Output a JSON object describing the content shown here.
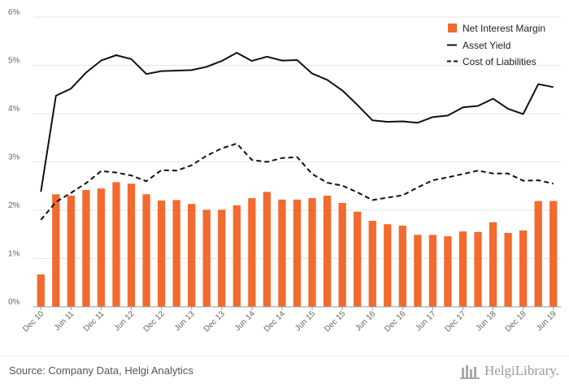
{
  "colors": {
    "bar": "#f26a2e",
    "line": "#111111",
    "grid": "#e5e5e5",
    "axis": "#999999"
  },
  "source": "Source: Company Data, Helgi Analytics",
  "logo": {
    "text": "HelgiLibrary.",
    "icon": "library-logo-icon"
  },
  "chart_data": {
    "type": "bar",
    "title": "",
    "xlabel": "",
    "ylabel": "",
    "ylim": [
      0,
      6
    ],
    "y_ticks": [
      "0%",
      "1%",
      "2%",
      "3%",
      "4%",
      "5%",
      "6%"
    ],
    "y_tick_values": [
      0,
      1,
      2,
      3,
      4,
      5,
      6
    ],
    "grid": true,
    "legend_position": "top-right",
    "categories": [
      "Dec 10",
      "Mar 11",
      "Jun 11",
      "Sep 11",
      "Dec 11",
      "Mar 12",
      "Jun 12",
      "Sep 12",
      "Dec 12",
      "Mar 13",
      "Jun 13",
      "Sep 13",
      "Dec 13",
      "Mar 14",
      "Jun 14",
      "Sep 14",
      "Dec 14",
      "Mar 15",
      "Jun 15",
      "Sep 15",
      "Dec 15",
      "Mar 16",
      "Jun 16",
      "Sep 16",
      "Dec 16",
      "Mar 17",
      "Jun 17",
      "Sep 17",
      "Dec 17",
      "Mar 18",
      "Jun 18",
      "Sep 18",
      "Dec 18",
      "Mar 19",
      "Jun 19"
    ],
    "x_tick_labels": [
      "Dec 10",
      "Jun 11",
      "Dec 11",
      "Jun 12",
      "Dec 12",
      "Jun 13",
      "Dec 13",
      "Jun 14",
      "Dec 14",
      "Jun 15",
      "Dec 15",
      "Jun 16",
      "Dec 16",
      "Jun 17",
      "Dec 17",
      "Jun 18",
      "Dec 18",
      "Jun 19"
    ],
    "series": [
      {
        "name": "Net Interest Margin",
        "type": "bar",
        "values": [
          0.67,
          2.33,
          2.3,
          2.42,
          2.45,
          2.58,
          2.55,
          2.33,
          2.2,
          2.21,
          2.13,
          2.01,
          2.01,
          2.1,
          2.25,
          2.38,
          2.22,
          2.22,
          2.25,
          2.3,
          2.15,
          1.97,
          1.78,
          1.71,
          1.68,
          1.49,
          1.49,
          1.46,
          1.56,
          1.55,
          1.75,
          1.53,
          1.58,
          2.19,
          2.19
        ]
      },
      {
        "name": "Asset Yield",
        "type": "line",
        "dash": "solid",
        "values": [
          2.38,
          4.37,
          4.52,
          4.85,
          5.1,
          5.21,
          5.13,
          4.82,
          4.88,
          4.89,
          4.9,
          4.97,
          5.09,
          5.26,
          5.09,
          5.18,
          5.1,
          5.11,
          4.83,
          4.7,
          4.48,
          4.18,
          3.86,
          3.83,
          3.84,
          3.81,
          3.93,
          3.96,
          4.13,
          4.16,
          4.31,
          4.1,
          3.99,
          4.61,
          4.55
        ]
      },
      {
        "name": "Cost of Liabilities",
        "type": "line",
        "dash": "dashed",
        "values": [
          1.8,
          2.17,
          2.36,
          2.56,
          2.81,
          2.78,
          2.72,
          2.6,
          2.83,
          2.82,
          2.93,
          3.13,
          3.28,
          3.38,
          3.04,
          3.0,
          3.08,
          3.1,
          2.75,
          2.57,
          2.51,
          2.37,
          2.21,
          2.26,
          2.31,
          2.47,
          2.62,
          2.68,
          2.75,
          2.82,
          2.76,
          2.76,
          2.61,
          2.62,
          2.55
        ]
      }
    ]
  }
}
